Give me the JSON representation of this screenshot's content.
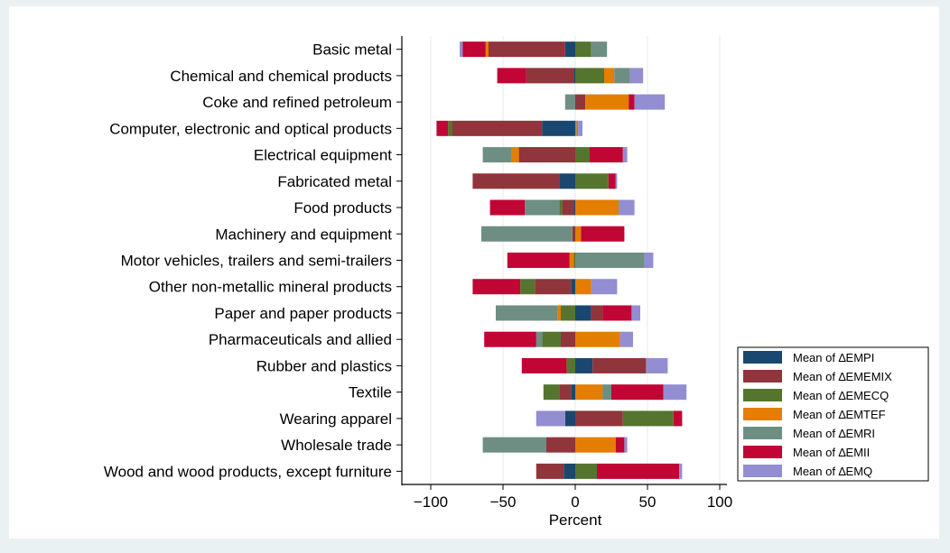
{
  "chart_data": {
    "type": "bar",
    "orientation": "horizontal",
    "stacked": true,
    "xlabel": "Percent",
    "xlim": [
      -120,
      105
    ],
    "x_ticks": [
      -100,
      -50,
      0,
      50,
      100
    ],
    "grid": true,
    "legend_position": "right",
    "categories": [
      "Basic metal",
      "Chemical and chemical products",
      "Coke and refined petroleum",
      "Computer, electronic and optical products",
      "Electrical equipment",
      "Fabricated metal",
      "Food products",
      "Machinery and equipment",
      "Motor vehicles, trailers and semi-trailers",
      "Other non-metallic mineral products",
      "Paper and paper products",
      "Pharmaceuticals and allied",
      "Rubber and plastics",
      "Textile",
      "Wearing apparel",
      "Wholesale trade",
      "Wood and wood products, except furniture"
    ],
    "series": [
      {
        "name": "Mean of ∆EMPI",
        "color": "#1a476f",
        "values": [
          -7,
          -1,
          0,
          -23,
          0,
          -11,
          -1,
          0,
          0,
          -3,
          11,
          0,
          12,
          -3,
          -7,
          0,
          -8
        ]
      },
      {
        "name": "Mean of ∆EMEMIX",
        "color": "#90353b",
        "values": [
          -53,
          -33,
          7,
          -62,
          -39,
          -60,
          -8,
          -2,
          0,
          -25,
          8,
          -10,
          37,
          -8,
          33,
          -20,
          -19
        ]
      },
      {
        "name": "Mean of ∆EMECQ",
        "color": "#55752f",
        "values": [
          11,
          20,
          0,
          -3,
          10,
          23,
          -2,
          0,
          -1,
          -10,
          -10,
          -13,
          -6,
          -11,
          35,
          0,
          15
        ]
      },
      {
        "name": "Mean of ∆EMTEF",
        "color": "#e37e00",
        "values": [
          -2,
          7,
          30,
          1,
          -5,
          0,
          30,
          4,
          -3,
          11,
          -2,
          31,
          0,
          19,
          0,
          28,
          0
        ]
      },
      {
        "name": "Mean of ∆EMRI",
        "color": "#6e8e84",
        "values": [
          11,
          11,
          -7,
          1,
          -20,
          0,
          -24,
          -63,
          48,
          0,
          -43,
          -4,
          0,
          6,
          0,
          -44,
          0
        ]
      },
      {
        "name": "Mean of ∆EMII",
        "color": "#c10534",
        "values": [
          -16,
          -20,
          4,
          -8,
          23,
          5,
          -24,
          30,
          -43,
          -33,
          20,
          -36,
          -31,
          36,
          6,
          6,
          57
        ]
      },
      {
        "name": "Mean of ∆EMQ",
        "color": "#938dd2",
        "values": [
          -2,
          9,
          21,
          3,
          3,
          1,
          11,
          0,
          6,
          18,
          6,
          9,
          15,
          16,
          -20,
          2,
          2
        ]
      }
    ]
  }
}
